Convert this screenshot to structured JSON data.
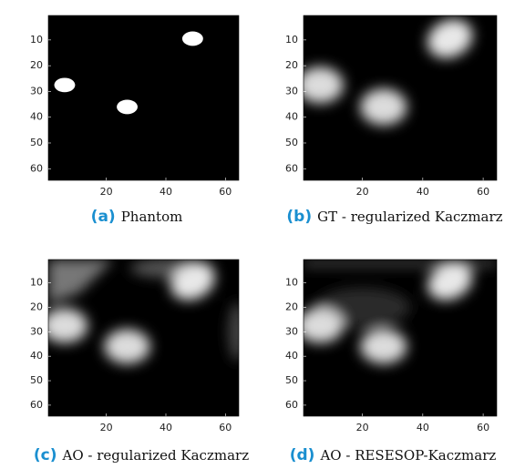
{
  "figure": {
    "panels": [
      {
        "label": "(a)",
        "caption": "Phantom",
        "xlim": [
          0.5,
          64.5
        ],
        "ylim": [
          0.5,
          64.5
        ],
        "xticks": [
          20,
          40,
          60
        ],
        "yticks": [
          10,
          20,
          30,
          40,
          50,
          60
        ]
      },
      {
        "label": "(b)",
        "caption": "GT - regularized Kaczmarz",
        "xlim": [
          0.5,
          64.5
        ],
        "ylim": [
          0.5,
          64.5
        ],
        "xticks": [
          20,
          40,
          60
        ],
        "yticks": [
          10,
          20,
          30,
          40,
          50,
          60
        ]
      },
      {
        "label": "(c)",
        "caption": "AO - regularized Kaczmarz",
        "xlim": [
          0.5,
          64.5
        ],
        "ylim": [
          0.5,
          64.5
        ],
        "xticks": [
          20,
          40,
          60
        ],
        "yticks": [
          10,
          20,
          30,
          40,
          50,
          60
        ]
      },
      {
        "label": "(d)",
        "caption": "AO - RESESOP-Kaczmarz",
        "xlim": [
          0.5,
          64.5
        ],
        "ylim": [
          0.5,
          64.5
        ],
        "xticks": [
          20,
          40,
          60
        ],
        "yticks": [
          10,
          20,
          30,
          40,
          50,
          60
        ]
      }
    ]
  }
}
